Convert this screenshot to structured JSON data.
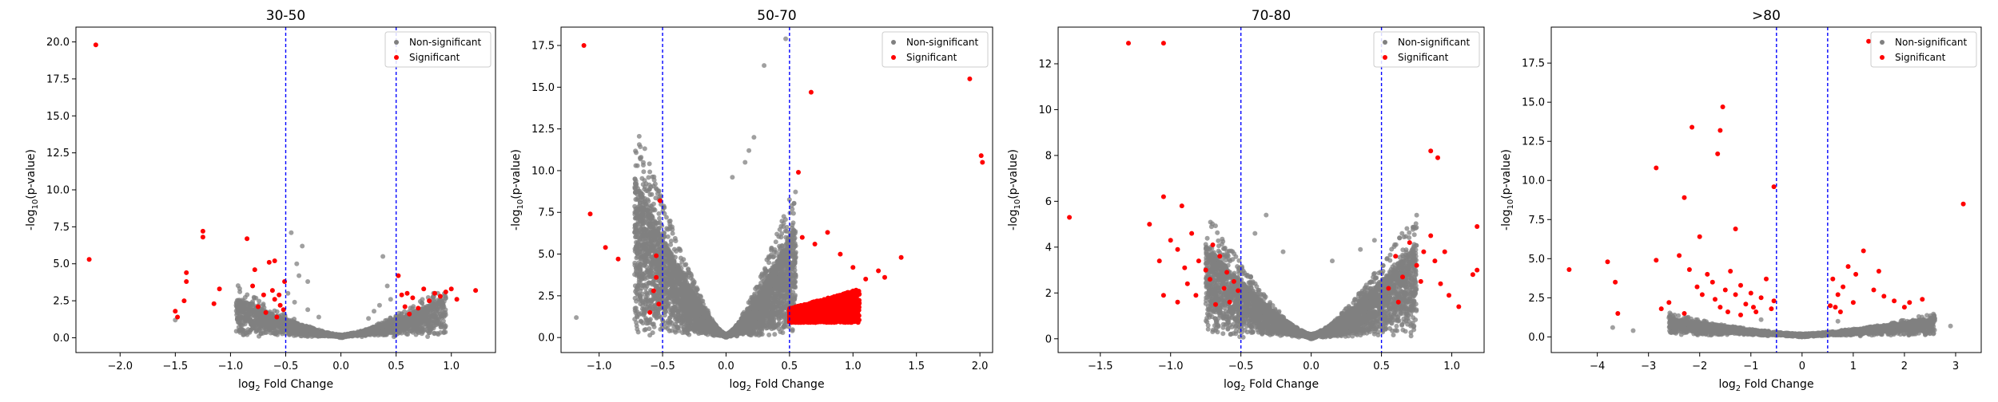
{
  "colors": {
    "non_significant": "#808080",
    "significant": "#ff0000",
    "threshold_line": "#0000ff",
    "legend_border": "#cccccc"
  },
  "chart_data": [
    {
      "type": "scatter",
      "title": "30-50",
      "xlabel_base": "log",
      "xlabel_sub": "2",
      "xlabel_rest": " Fold Change",
      "ylabel_pre": "-log",
      "ylabel_sub": "10",
      "ylabel_rest": "(p-value)",
      "xlim": [
        -2.4,
        1.4
      ],
      "ylim": [
        -1.0,
        21.0
      ],
      "xticks": [
        -2.0,
        -1.5,
        -1.0,
        -0.5,
        0.0,
        0.5,
        1.0
      ],
      "xtick_labels": [
        "−2.0",
        "−1.5",
        "−1.0",
        "−0.5",
        "0.0",
        "0.5",
        "1.0"
      ],
      "yticks": [
        0.0,
        2.5,
        5.0,
        7.5,
        10.0,
        12.5,
        15.0,
        17.5,
        20.0
      ],
      "ytick_labels": [
        "0.0",
        "2.5",
        "5.0",
        "7.5",
        "10.0",
        "12.5",
        "15.0",
        "17.5",
        "20.0"
      ],
      "thresholds": [
        -0.5,
        0.5
      ],
      "legend": {
        "position": "top-right",
        "entries": [
          "Non-significant",
          "Significant"
        ]
      },
      "significant_points": [
        [
          -2.22,
          19.8
        ],
        [
          -2.28,
          5.3
        ],
        [
          -1.5,
          1.8
        ],
        [
          -1.48,
          1.4
        ],
        [
          -1.42,
          2.5
        ],
        [
          -1.4,
          3.8
        ],
        [
          -1.4,
          4.4
        ],
        [
          -1.25,
          6.8
        ],
        [
          -1.25,
          7.2
        ],
        [
          -1.15,
          2.3
        ],
        [
          -1.1,
          3.3
        ],
        [
          -0.85,
          6.7
        ],
        [
          -0.8,
          3.5
        ],
        [
          -0.78,
          4.6
        ],
        [
          -0.75,
          2.1
        ],
        [
          -0.7,
          2.9
        ],
        [
          -0.68,
          1.7
        ],
        [
          -0.65,
          5.1
        ],
        [
          -0.62,
          3.2
        ],
        [
          -0.6,
          5.2
        ],
        [
          -0.58,
          1.4
        ],
        [
          -0.55,
          2.2
        ],
        [
          -0.52,
          1.9
        ],
        [
          -0.51,
          3.8
        ],
        [
          -0.6,
          2.6
        ],
        [
          -0.56,
          2.9
        ],
        [
          0.52,
          4.2
        ],
        [
          0.55,
          2.9
        ],
        [
          0.58,
          2.1
        ],
        [
          0.6,
          3.0
        ],
        [
          0.62,
          1.6
        ],
        [
          0.65,
          2.7
        ],
        [
          0.7,
          2.0
        ],
        [
          0.75,
          3.3
        ],
        [
          0.8,
          2.5
        ],
        [
          0.85,
          3.0
        ],
        [
          0.9,
          2.8
        ],
        [
          0.95,
          3.1
        ],
        [
          1.0,
          3.3
        ],
        [
          1.05,
          2.6
        ],
        [
          1.22,
          3.2
        ]
      ],
      "nonsig_points": [
        [
          -0.45,
          7.1
        ],
        [
          -0.35,
          6.2
        ],
        [
          -0.3,
          3.8
        ],
        [
          0.38,
          5.5
        ],
        [
          0.42,
          3.5
        ],
        [
          -0.4,
          5.0
        ],
        [
          -0.38,
          4.2
        ],
        [
          -0.48,
          3.0
        ],
        [
          -0.42,
          2.4
        ],
        [
          0.45,
          2.6
        ],
        [
          0.35,
          2.2
        ],
        [
          -1.5,
          1.2
        ],
        [
          -0.92,
          1.0
        ],
        [
          -0.3,
          1.9
        ],
        [
          0.3,
          1.8
        ],
        [
          -0.2,
          1.4
        ],
        [
          0.25,
          1.3
        ]
      ],
      "cloud": {
        "x_range": [
          -0.95,
          0.95
        ],
        "max_y": 2.6,
        "count": 2200
      }
    },
    {
      "type": "scatter",
      "title": "50-70",
      "xlabel_base": "log",
      "xlabel_sub": "2",
      "xlabel_rest": " Fold Change",
      "ylabel_pre": "-log",
      "ylabel_sub": "10",
      "ylabel_rest": "(p-value)",
      "xlim": [
        -1.3,
        2.1
      ],
      "ylim": [
        -0.9,
        18.6
      ],
      "xticks": [
        -1.0,
        -0.5,
        0.0,
        0.5,
        1.0,
        1.5,
        2.0
      ],
      "xtick_labels": [
        "−1.0",
        "−0.5",
        "0.0",
        "0.5",
        "1.0",
        "1.5",
        "2.0"
      ],
      "yticks": [
        0.0,
        2.5,
        5.0,
        7.5,
        10.0,
        12.5,
        15.0,
        17.5
      ],
      "ytick_labels": [
        "0.0",
        "2.5",
        "5.0",
        "7.5",
        "10.0",
        "12.5",
        "15.0",
        "17.5"
      ],
      "thresholds": [
        -0.5,
        0.5
      ],
      "legend": {
        "position": "top-right",
        "entries": [
          "Non-significant",
          "Significant"
        ]
      },
      "significant_points": [
        [
          -1.12,
          17.5
        ],
        [
          -1.07,
          7.4
        ],
        [
          -0.95,
          5.4
        ],
        [
          -0.85,
          4.7
        ],
        [
          -0.52,
          8.2
        ],
        [
          -0.55,
          4.9
        ],
        [
          -0.55,
          3.6
        ],
        [
          -0.57,
          2.8
        ],
        [
          -0.53,
          2.0
        ],
        [
          -0.6,
          1.5
        ],
        [
          0.67,
          14.7
        ],
        [
          0.57,
          9.9
        ],
        [
          1.92,
          15.5
        ],
        [
          2.01,
          10.9
        ],
        [
          2.02,
          10.5
        ],
        [
          1.38,
          4.8
        ],
        [
          1.2,
          4.0
        ],
        [
          1.25,
          3.6
        ],
        [
          1.1,
          3.5
        ],
        [
          0.9,
          5.0
        ],
        [
          0.8,
          6.3
        ],
        [
          0.7,
          5.6
        ],
        [
          0.6,
          6.0
        ],
        [
          1.0,
          4.2
        ]
      ],
      "nonsig_points": [
        [
          0.47,
          17.9
        ],
        [
          0.3,
          16.3
        ],
        [
          -1.18,
          1.2
        ],
        [
          -0.7,
          0.5
        ],
        [
          -0.6,
          0.9
        ],
        [
          0.22,
          12.0
        ],
        [
          0.18,
          11.2
        ],
        [
          0.15,
          10.5
        ],
        [
          0.05,
          9.6
        ]
      ],
      "cloud": {
        "x_range": [
          -0.72,
          0.55
        ],
        "max_y": 9.5,
        "count": 4500
      },
      "sig_cloud": {
        "x_range": [
          0.5,
          1.05
        ],
        "max_y": 3.0,
        "count": 1600
      }
    },
    {
      "type": "scatter",
      "title": "70-80",
      "xlabel_base": "log",
      "xlabel_sub": "2",
      "xlabel_rest": " Fold Change",
      "ylabel_pre": "-log",
      "ylabel_sub": "10",
      "ylabel_rest": "(p-value)",
      "xlim": [
        -1.8,
        1.23
      ],
      "ylim": [
        -0.6,
        13.6
      ],
      "xticks": [
        -1.5,
        -1.0,
        -0.5,
        0.0,
        0.5,
        1.0
      ],
      "xtick_labels": [
        "−1.5",
        "−1.0",
        "−0.5",
        "0.0",
        "0.5",
        "1.0"
      ],
      "yticks": [
        0,
        2,
        4,
        6,
        8,
        10,
        12
      ],
      "ytick_labels": [
        "0",
        "2",
        "4",
        "6",
        "8",
        "10",
        "12"
      ],
      "thresholds": [
        -0.5,
        0.5
      ],
      "legend": {
        "position": "top-right",
        "entries": [
          "Non-significant",
          "Significant"
        ]
      },
      "significant_points": [
        [
          -1.3,
          12.9
        ],
        [
          -1.05,
          12.9
        ],
        [
          -1.72,
          5.3
        ],
        [
          -1.05,
          6.2
        ],
        [
          -0.92,
          5.8
        ],
        [
          -1.15,
          5.0
        ],
        [
          -1.0,
          4.3
        ],
        [
          -0.95,
          3.9
        ],
        [
          -0.85,
          4.6
        ],
        [
          -0.8,
          3.4
        ],
        [
          -0.75,
          3.0
        ],
        [
          -0.7,
          4.1
        ],
        [
          -0.65,
          3.6
        ],
        [
          -0.6,
          2.9
        ],
        [
          -0.55,
          2.5
        ],
        [
          -0.52,
          2.1
        ],
        [
          -0.58,
          1.6
        ],
        [
          -0.62,
          2.2
        ],
        [
          -0.72,
          2.6
        ],
        [
          -0.88,
          2.4
        ],
        [
          -0.9,
          3.1
        ],
        [
          -1.05,
          1.9
        ],
        [
          -1.08,
          3.4
        ],
        [
          -0.95,
          1.6
        ],
        [
          -0.82,
          1.9
        ],
        [
          -0.68,
          1.5
        ],
        [
          0.85,
          8.2
        ],
        [
          0.9,
          7.9
        ],
        [
          1.18,
          4.9
        ],
        [
          1.18,
          3.0
        ],
        [
          1.15,
          2.8
        ],
        [
          0.6,
          3.6
        ],
        [
          0.65,
          2.7
        ],
        [
          0.7,
          4.2
        ],
        [
          0.75,
          3.2
        ],
        [
          0.8,
          3.8
        ],
        [
          0.85,
          4.5
        ],
        [
          0.88,
          3.4
        ],
        [
          0.92,
          2.4
        ],
        [
          0.95,
          3.8
        ],
        [
          0.98,
          1.9
        ],
        [
          0.55,
          2.2
        ],
        [
          0.62,
          1.6
        ],
        [
          1.05,
          1.4
        ],
        [
          0.78,
          2.5
        ]
      ],
      "nonsig_points": [
        [
          -0.32,
          5.4
        ],
        [
          -0.4,
          4.6
        ],
        [
          0.45,
          4.3
        ],
        [
          0.35,
          3.9
        ],
        [
          -0.2,
          3.8
        ],
        [
          0.15,
          3.4
        ]
      ],
      "cloud": {
        "x_range": [
          -0.75,
          0.75
        ],
        "max_y": 4.0,
        "count": 4200
      }
    },
    {
      "type": "scatter",
      "title": ">80",
      "xlabel_base": "log",
      "xlabel_sub": "2",
      "xlabel_rest": " Fold Change",
      "ylabel_pre": "-log",
      "ylabel_sub": "10",
      "ylabel_rest": "(p-value)",
      "xlim": [
        -4.9,
        3.5
      ],
      "ylim": [
        -1.0,
        19.8
      ],
      "xticks": [
        -4,
        -3,
        -2,
        -1,
        0,
        1,
        2,
        3
      ],
      "xtick_labels": [
        "−4",
        "−3",
        "−2",
        "−1",
        "0",
        "1",
        "2",
        "3"
      ],
      "yticks": [
        0.0,
        2.5,
        5.0,
        7.5,
        10.0,
        12.5,
        15.0,
        17.5
      ],
      "ytick_labels": [
        "0.0",
        "2.5",
        "5.0",
        "7.5",
        "10.0",
        "12.5",
        "15.0",
        "17.5"
      ],
      "thresholds": [
        -0.5,
        0.5
      ],
      "legend": {
        "position": "top-right",
        "entries": [
          "Non-significant",
          "Significant"
        ]
      },
      "significant_points": [
        [
          -4.55,
          4.3
        ],
        [
          -3.8,
          4.8
        ],
        [
          -3.65,
          3.5
        ],
        [
          -3.6,
          1.5
        ],
        [
          -2.85,
          10.8
        ],
        [
          -2.85,
          4.9
        ],
        [
          -2.75,
          1.8
        ],
        [
          -2.3,
          8.9
        ],
        [
          -2.15,
          13.4
        ],
        [
          -2.0,
          6.4
        ],
        [
          -1.65,
          11.7
        ],
        [
          -1.6,
          13.2
        ],
        [
          -1.55,
          14.7
        ],
        [
          -1.3,
          6.9
        ],
        [
          -0.55,
          9.6
        ],
        [
          -2.4,
          5.2
        ],
        [
          -2.2,
          4.3
        ],
        [
          -2.05,
          3.2
        ],
        [
          -1.95,
          2.7
        ],
        [
          -1.85,
          4.0
        ],
        [
          -1.75,
          3.5
        ],
        [
          -1.7,
          2.4
        ],
        [
          -1.6,
          1.9
        ],
        [
          -1.5,
          3.0
        ],
        [
          -1.4,
          4.2
        ],
        [
          -1.3,
          2.7
        ],
        [
          -1.2,
          3.3
        ],
        [
          -1.1,
          2.1
        ],
        [
          -1.0,
          2.8
        ],
        [
          -0.9,
          1.6
        ],
        [
          -0.8,
          2.5
        ],
        [
          -0.7,
          3.7
        ],
        [
          -0.6,
          1.8
        ],
        [
          -0.55,
          2.3
        ],
        [
          -2.6,
          2.2
        ],
        [
          -2.3,
          1.5
        ],
        [
          -1.45,
          1.6
        ],
        [
          -1.2,
          1.4
        ],
        [
          -0.95,
          1.9
        ],
        [
          1.3,
          18.9
        ],
        [
          3.15,
          8.5
        ],
        [
          1.2,
          5.5
        ],
        [
          1.05,
          4.0
        ],
        [
          0.9,
          4.5
        ],
        [
          0.8,
          3.2
        ],
        [
          0.7,
          2.7
        ],
        [
          0.6,
          3.7
        ],
        [
          0.55,
          2.0
        ],
        [
          1.5,
          4.2
        ],
        [
          1.6,
          2.6
        ],
        [
          1.8,
          2.3
        ],
        [
          2.0,
          1.9
        ],
        [
          2.1,
          2.2
        ],
        [
          2.35,
          2.4
        ],
        [
          1.4,
          3.0
        ],
        [
          1.0,
          2.2
        ],
        [
          0.75,
          1.6
        ],
        [
          0.65,
          1.9
        ]
      ],
      "nonsig_points": [
        [
          -3.7,
          0.6
        ],
        [
          -3.3,
          0.4
        ],
        [
          2.9,
          0.7
        ],
        [
          2.4,
          0.3
        ],
        [
          -0.8,
          1.1
        ],
        [
          0.7,
          1.0
        ]
      ],
      "cloud": {
        "x_range": [
          -2.6,
          2.6
        ],
        "max_y": 1.1,
        "count": 2600
      }
    }
  ]
}
